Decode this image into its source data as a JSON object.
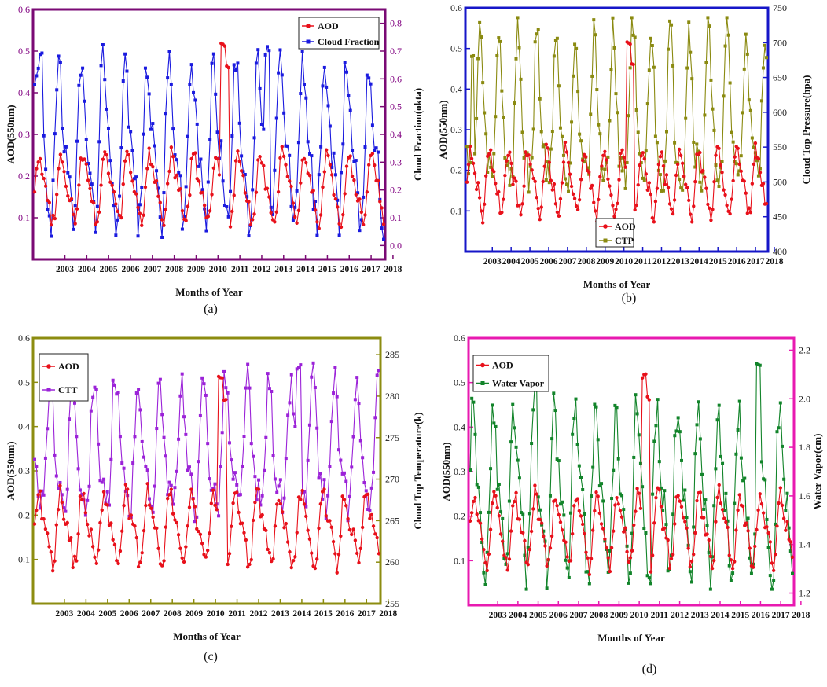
{
  "colors": {
    "aod": "#e8101a",
    "cloud_fraction": "#1a1adf",
    "ctp": "#8a8a10",
    "ctt": "#9b22d8",
    "water_vapor": "#12842a",
    "frame_a": "#7a0a74",
    "frame_b": "#1616c8",
    "frame_c": "#8c8c10",
    "frame_d": "#e81ab0",
    "tick_text_a": "#800080"
  },
  "shared": {
    "xlabel": "Months of Year",
    "year_ticks": [
      "2003",
      "2004",
      "2005",
      "2006",
      "2007",
      "2008",
      "2009",
      "2010",
      "2011",
      "2012",
      "2013",
      "2014",
      "2015",
      "2016",
      "2017",
      "2018"
    ],
    "aod_left_label": "AOD(550nm)",
    "aod_legend": "AOD"
  },
  "chart_data": [
    {
      "id": "a",
      "type": "line",
      "caption": "(a)",
      "title": "",
      "xlabel": "Months of Year",
      "ylabel": "AOD(550nm)",
      "y2label": "Cloud Fraction(okta)",
      "ylim": [
        0.0,
        0.6
      ],
      "y2lim": [
        -0.05,
        0.85
      ],
      "yticks": [
        "0.1",
        "0.2",
        "0.3",
        "0.4",
        "0.5",
        "0.6"
      ],
      "y2ticks": [
        "0.0",
        "0.1",
        "0.2",
        "0.3",
        "0.4",
        "0.5",
        "0.6",
        "0.7",
        "0.8"
      ],
      "legend_position": "top-right",
      "series": [
        {
          "name": "AOD",
          "axis": "left",
          "base": 0.17,
          "amp": 0.07,
          "phase": 0.0,
          "peaks": [
            [
              8.5,
              0.52
            ],
            [
              8.7,
              0.47
            ]
          ]
        },
        {
          "name": "Cloud Fraction",
          "axis": "right",
          "base": 0.36,
          "amp": 0.25,
          "phase": 0.7,
          "peaks": [
            [
              10.5,
              0.72
            ],
            [
              0.3,
              0.7
            ]
          ]
        }
      ]
    },
    {
      "id": "b",
      "type": "line",
      "caption": "(b)",
      "title": "",
      "xlabel": "Months of Year",
      "ylabel": "AOD(550nm)",
      "y2label": "Cloud Top Pressure(hpa)",
      "ylim": [
        0.0,
        0.6
      ],
      "y2lim": [
        400,
        750
      ],
      "yticks": [
        "0.1",
        "0.2",
        "0.3",
        "0.4",
        "0.5",
        "0.6"
      ],
      "y2ticks": [
        "400",
        "450",
        "500",
        "550",
        "600",
        "650",
        "700",
        "750"
      ],
      "legend_position": "bottom-center",
      "series": [
        {
          "name": "AOD",
          "axis": "left",
          "base": 0.17,
          "amp": 0.07,
          "phase": 0.0,
          "peaks": [
            [
              8.5,
              0.52
            ],
            [
              8.7,
              0.47
            ]
          ]
        },
        {
          "name": "CTP",
          "axis": "right",
          "base": 590,
          "amp": 100,
          "phase": 3.4,
          "peaks": [
            [
              8.8,
              720
            ],
            [
              0.3,
              690
            ]
          ]
        }
      ]
    },
    {
      "id": "c",
      "type": "line",
      "caption": "(c)",
      "title": "",
      "xlabel": "Months of Year",
      "ylabel": "AOD(550nm)",
      "y2label": "Cloud Top Temperature(k)",
      "ylim": [
        0.0,
        0.6
      ],
      "y2lim": [
        255,
        287
      ],
      "yticks": [
        "0.1",
        "0.2",
        "0.3",
        "0.4",
        "0.5",
        "0.6"
      ],
      "y2ticks": [
        "255",
        "260",
        "265",
        "270",
        "275",
        "280",
        "285"
      ],
      "legend_position": "top-left",
      "series": [
        {
          "name": "AOD",
          "axis": "left",
          "base": 0.17,
          "amp": 0.07,
          "phase": 0.0,
          "peaks": [
            [
              8.5,
              0.52
            ],
            [
              8.7,
              0.47
            ]
          ]
        },
        {
          "name": "CTT",
          "axis": "right",
          "base": 273,
          "amp": 7,
          "phase": 3.1,
          "peaks": [
            [
              12.1,
              284
            ],
            [
              3.6,
              282
            ]
          ]
        }
      ]
    },
    {
      "id": "d",
      "type": "line",
      "caption": "(d)",
      "title": "",
      "xlabel": "Months of Year",
      "ylabel": "AOD(550nm)",
      "y2label": "Water  Vapor(cm)",
      "ylim": [
        0.0,
        0.6
      ],
      "y2lim": [
        1.15,
        2.25
      ],
      "yticks": [
        "0.1",
        "0.2",
        "0.3",
        "0.4",
        "0.5",
        "0.6"
      ],
      "y2ticks": [
        "1.2",
        "1.4",
        "1.6",
        "1.8",
        "2.0",
        "2.2"
      ],
      "legend_position": "top-left",
      "series": [
        {
          "name": "AOD",
          "axis": "left",
          "base": 0.17,
          "amp": 0.07,
          "phase": 0.0,
          "peaks": [
            [
              8.5,
              0.52
            ],
            [
              8.7,
              0.47
            ]
          ]
        },
        {
          "name": "Water Vapor",
          "axis": "right",
          "base": 1.6,
          "amp": 0.3,
          "phase": 0.4,
          "peaks": [
            [
              14.1,
              2.15
            ],
            [
              3.2,
              2.1
            ]
          ]
        }
      ]
    }
  ]
}
